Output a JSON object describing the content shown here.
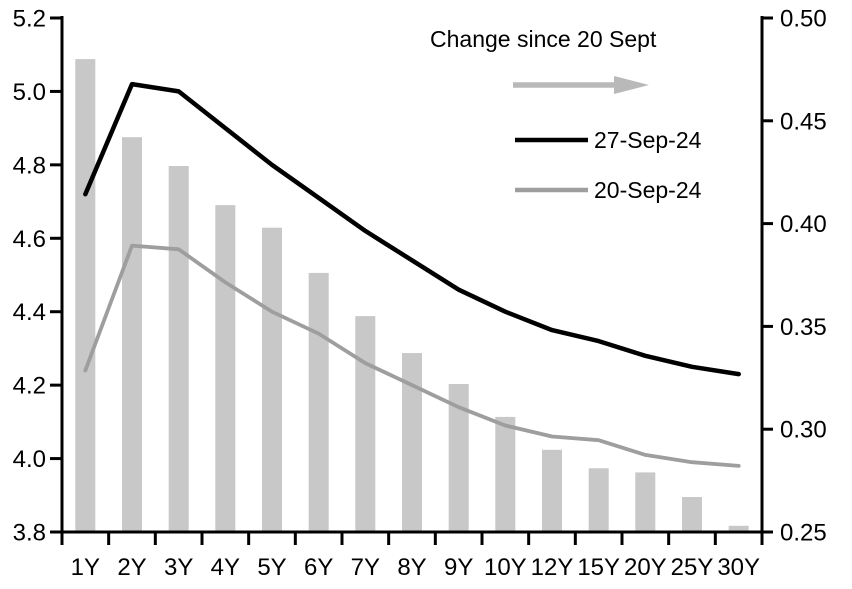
{
  "chart_data": {
    "type": "bar",
    "subtype": "combo-bar-line-dual-axis",
    "title": "",
    "categories": [
      "1Y",
      "2Y",
      "3Y",
      "4Y",
      "5Y",
      "6Y",
      "7Y",
      "8Y",
      "9Y",
      "10Y",
      "12Y",
      "15Y",
      "20Y",
      "25Y",
      "30Y"
    ],
    "series": [
      {
        "name": "Change since 20 Sept",
        "type": "bar",
        "axis": "right",
        "color": "#c8c8c8",
        "values": [
          0.48,
          0.442,
          0.428,
          0.409,
          0.398,
          0.376,
          0.355,
          0.337,
          0.322,
          0.306,
          0.29,
          0.281,
          0.279,
          0.267,
          0.253
        ]
      },
      {
        "name": "27-Sep-24",
        "type": "line",
        "axis": "left",
        "color": "#000000",
        "values": [
          4.72,
          5.02,
          5.0,
          4.9,
          4.8,
          4.71,
          4.62,
          4.54,
          4.46,
          4.4,
          4.35,
          4.32,
          4.28,
          4.25,
          4.23
        ]
      },
      {
        "name": "20-Sep-24",
        "type": "line",
        "axis": "left",
        "color": "#9e9e9e",
        "values": [
          4.24,
          4.58,
          4.57,
          4.48,
          4.4,
          4.34,
          4.26,
          4.2,
          4.14,
          4.09,
          4.06,
          4.05,
          4.01,
          3.99,
          3.98
        ]
      }
    ],
    "left_axis": {
      "min": 3.8,
      "max": 5.2,
      "ticks": [
        "3.8",
        "4.0",
        "4.2",
        "4.4",
        "4.6",
        "4.8",
        "5.0",
        "5.2"
      ]
    },
    "right_axis": {
      "min": 0.25,
      "max": 0.5,
      "ticks": [
        "0.25",
        "0.30",
        "0.35",
        "0.40",
        "0.45",
        "0.50"
      ]
    },
    "legend": {
      "title": "Change since 20 Sept",
      "arrow_color": "#b9b9b9",
      "position": "top-right-inside"
    },
    "grid": false,
    "axis_color": "#000000"
  }
}
